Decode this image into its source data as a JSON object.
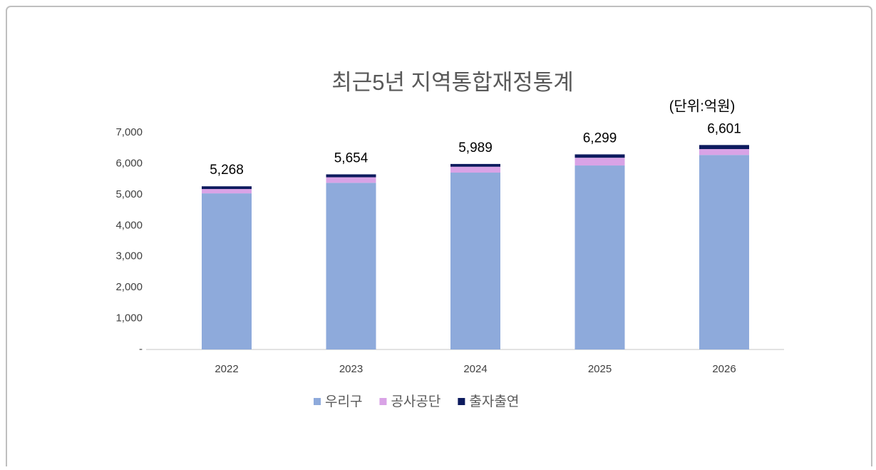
{
  "chart_data": {
    "type": "stacked_bar",
    "title": "최근5년 지역통합재정통계",
    "unit_note": "(단위:억원)",
    "categories": [
      "2022",
      "2023",
      "2024",
      "2025",
      "2026"
    ],
    "series": [
      {
        "name": "우리구",
        "color": "#8eaadb",
        "values": [
          5040,
          5380,
          5710,
          5940,
          6280
        ]
      },
      {
        "name": "공사공단",
        "color": "#d9a3e6",
        "values": [
          140,
          180,
          190,
          250,
          190
        ]
      },
      {
        "name": "출자출연",
        "color": "#0d1b5e",
        "values": [
          88,
          94,
          89,
          109,
          131
        ]
      }
    ],
    "totals": [
      5268,
      5654,
      5989,
      6299,
      6601
    ],
    "total_labels": [
      "5,268",
      "5,654",
      "5,989",
      "6,299",
      "6,601"
    ],
    "ylim": [
      0,
      7000
    ],
    "yticks": [
      {
        "value": 0,
        "label": "-"
      },
      {
        "value": 1000,
        "label": "1,000"
      },
      {
        "value": 2000,
        "label": "2,000"
      },
      {
        "value": 3000,
        "label": "3,000"
      },
      {
        "value": 4000,
        "label": "4,000"
      },
      {
        "value": 5000,
        "label": "5,000"
      },
      {
        "value": 6000,
        "label": "6,000"
      },
      {
        "value": 7000,
        "label": "7,000"
      }
    ],
    "grid": false,
    "legend": "bottom"
  }
}
